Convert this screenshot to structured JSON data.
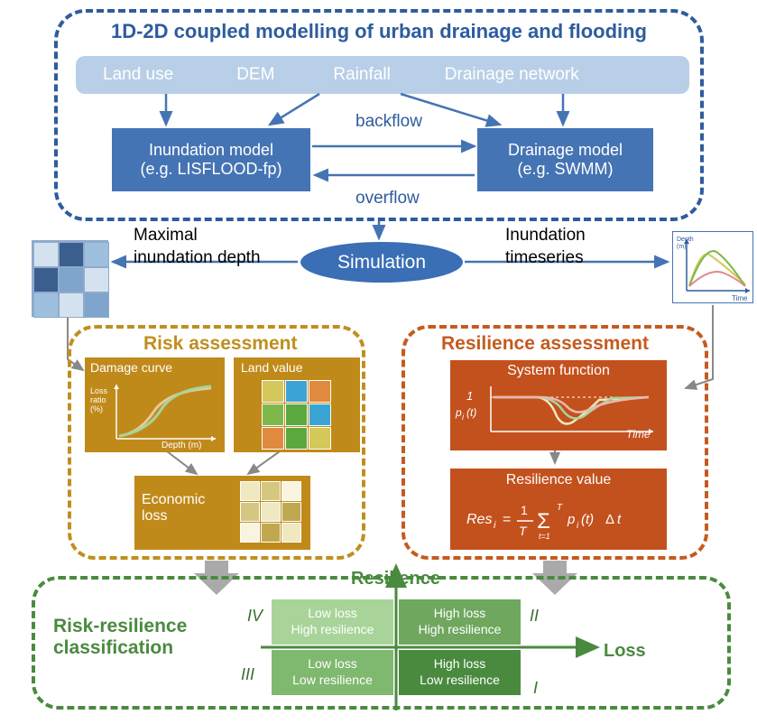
{
  "top": {
    "title": "1D-2D coupled modelling of urban drainage and flooding",
    "inputs": [
      "Land use",
      "DEM",
      "Rainfall",
      "Drainage network"
    ],
    "model_left_l1": "Inundation model",
    "model_left_l2": "(e.g. LISFLOOD-fp)",
    "model_right_l1": "Drainage model",
    "model_right_l2": "(e.g. SWMM)",
    "backflow": "backflow",
    "overflow": "overflow"
  },
  "sim": {
    "label": "Simulation",
    "left_l1": "Maximal",
    "left_l2": "inundation depth",
    "right_l1": "Inundation",
    "right_l2": "timeseries",
    "ts_y": "Depth (m)",
    "ts_x": "Time"
  },
  "depth_grid": {
    "cells": [
      {
        "r": 0,
        "c": 0,
        "color": "#d4e2f0"
      },
      {
        "r": 0,
        "c": 1,
        "color": "#3a5f8f"
      },
      {
        "r": 0,
        "c": 2,
        "color": "#9fbfdf"
      },
      {
        "r": 1,
        "c": 0,
        "color": "#3a5f8f"
      },
      {
        "r": 1,
        "c": 1,
        "color": "#7fa5cc"
      },
      {
        "r": 1,
        "c": 2,
        "color": "#d4e2f0"
      },
      {
        "r": 2,
        "c": 0,
        "color": "#9fbfdf"
      },
      {
        "r": 2,
        "c": 1,
        "color": "#d4e2f0"
      },
      {
        "r": 2,
        "c": 2,
        "color": "#7fa5cc"
      }
    ]
  },
  "risk": {
    "title": "Risk assessment",
    "damage_title": "Damage curve",
    "damage_y": "Loss ratio (%)",
    "damage_x": "Depth (m)",
    "landval_title": "Land value",
    "econ_title": "Economic loss",
    "landval_cells": [
      [
        "#d4c85a",
        "#3aa5d4",
        "#e08a3f"
      ],
      [
        "#7fb84a",
        "#5ba83f",
        "#3aa5d4"
      ],
      [
        "#e08a3f",
        "#5ba83f",
        "#d4c85a"
      ]
    ],
    "econ_cells": [
      [
        "#f0e8c0",
        "#d4c880",
        "#f8f4e0"
      ],
      [
        "#d4c880",
        "#f0e8c0",
        "#c0a850"
      ],
      [
        "#f8f4e0",
        "#c0a850",
        "#f0e8c0"
      ]
    ]
  },
  "resilience": {
    "title": "Resilience assessment",
    "sysfunc_title": "System function",
    "sysfunc_y1": "1",
    "sysfunc_y0": "p_i(t)",
    "sysfunc_x": "Time",
    "resval_title": "Resilience value",
    "resval_formula": "Res_i = (1/T) Σ_{t=1}^{T} p_i(t) Δt"
  },
  "classification": {
    "title": "Risk-resilience classification",
    "yaxis": "Resilience",
    "xaxis": "Loss",
    "quads": {
      "IV": {
        "l1": "Low loss",
        "l2": "High resilience",
        "color": "#a8d49a"
      },
      "II": {
        "l1": "High loss",
        "l2": "High resilience",
        "color": "#6fa75f"
      },
      "III": {
        "l1": "Low loss",
        "l2": "Low resilience",
        "color": "#7fb86f"
      },
      "I": {
        "l1": "High loss",
        "l2": "Low resilience",
        "color": "#4a8a3f"
      }
    },
    "roman": {
      "I": "I",
      "II": "II",
      "III": "III",
      "IV": "IV"
    }
  },
  "colors": {
    "top_border": "#2e5c9e",
    "model_bg": "#4574b4",
    "inputs_bg": "#b9cfe7",
    "risk_border": "#bf8f1e",
    "res_border": "#c55a1f",
    "class_border": "#4a8a3f"
  }
}
